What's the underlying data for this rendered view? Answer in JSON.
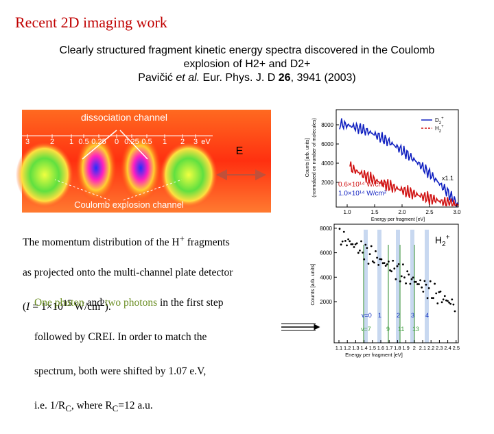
{
  "title": "Recent 2D imaging work",
  "subtitle": {
    "line1": "Clearly structured fragment kinetic energy spectra discovered in the Coulomb",
    "line2": "explosion of H2+ and D2+",
    "authors": "Pavičić",
    "etal": "et al.",
    "journal": "Eur. Phys. J. D",
    "volume": "26",
    "pages": ", 3941 (2003)"
  },
  "detector_image": {
    "top_label": "dissociation channel",
    "bottom_label": "Coulomb explosion channel",
    "scale": [
      "3",
      "2",
      "1",
      "0.5",
      "0.25",
      "0",
      "0.25",
      "0.5",
      "1",
      "2",
      "3"
    ],
    "unit": "eV",
    "arrow_label": "E"
  },
  "caption": {
    "line1": "The momentum distribution of the ",
    "ion": "H",
    "ion_charge": "+",
    "line1_end": " fragments",
    "line2": "as projected onto the multi-channel plate detector",
    "open": "(",
    "symbol": "I",
    "mid": " = 1×10",
    "exponent": "15",
    "unit": " W/cm",
    "unit_power": "2",
    "close": ")."
  },
  "note": {
    "one_photon": "One photon",
    "and": " and ",
    "two_photons": "two photons",
    "line1_end": " in the first step",
    "line2": "followed by CREI. In order to match the",
    "line3": "spectrum, both were shifted by 1.07 e.V,",
    "line4_a": "i.e. 1/R",
    "sub_a": "C",
    "line4_b": ", where R",
    "sub_b": "C",
    "line4_c": "=12 a.u."
  },
  "top_plot": {
    "ylabel": "Counts [arb. units]",
    "ylabel2": "(normalized on number of molecules)",
    "xlabel": "Energy per fragment [eV]",
    "yticks": [
      "2000",
      "4000",
      "6000",
      "8000"
    ],
    "xticks": [
      "1.0",
      "1.5",
      "2.0",
      "2.5",
      "3.0"
    ],
    "legend": [
      {
        "name": "D",
        "sub": "2",
        "sup": "+"
      },
      {
        "name": "H",
        "sub": "2",
        "sup": "+"
      }
    ],
    "factor": "x1.1",
    "intensity_1": "0.6×10¹⁴ W/cm²",
    "intensity_2": "1.0×10¹⁴ W/cm²"
  },
  "bottom_plot": {
    "ylabel": "Counts [arb. units]",
    "xlabel": "Energy per fragment [eV]",
    "yticks": [
      "2000",
      "4000",
      "6000",
      "8000"
    ],
    "xticks": [
      "1.1",
      "1.2",
      "1.3",
      "1.4",
      "1.5",
      "1.6",
      "1.7",
      "1.8",
      "1.9",
      "2",
      "2.1",
      "2.2",
      "2.3",
      "2.4",
      "2.5"
    ],
    "one_photon_levels": [
      "v=0",
      "1",
      "2",
      "3",
      "4"
    ],
    "two_photon_levels": [
      "v=7",
      "9",
      "11",
      "13"
    ],
    "species": "H",
    "species_sub": "2",
    "species_sup": "+"
  }
}
